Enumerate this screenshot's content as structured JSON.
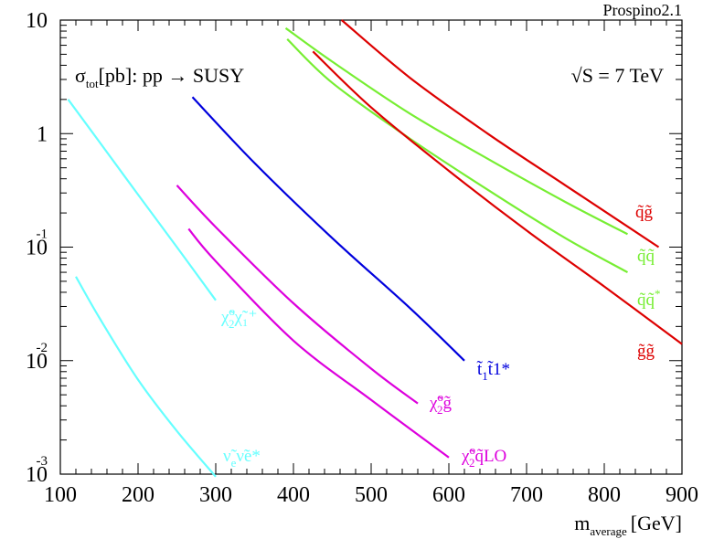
{
  "chart_data": {
    "type": "line",
    "title": "σtot[pb]: pp → SUSY",
    "title_parts": {
      "sigma": "σ",
      "sub": "tot",
      "rest": "[pb]: pp → SUSY"
    },
    "energy_label": "√S = 7 TeV",
    "program_label": "Prospino2.1",
    "xlabel": "m",
    "xlabel_sub": "average",
    "xlabel_unit": "[GeV]",
    "xlim": [
      100,
      900
    ],
    "ylim": [
      0.001,
      10
    ],
    "yscale": "log",
    "x_ticks": [
      100,
      200,
      300,
      400,
      500,
      600,
      700,
      800,
      900
    ],
    "y_ticks": [
      {
        "value": 10,
        "base": "10",
        "exp": ""
      },
      {
        "value": 1,
        "base": "1",
        "exp": ""
      },
      {
        "value": 0.1,
        "base": "10",
        "exp": "-1"
      },
      {
        "value": 0.01,
        "base": "10",
        "exp": "-2"
      },
      {
        "value": 0.001,
        "base": "10",
        "exp": "-3"
      }
    ],
    "series": [
      {
        "name": "q̃g̃",
        "label_main": "q̃g̃",
        "label_sub": "",
        "label_sup": "",
        "label_tail": "",
        "color": "#dd0000",
        "x": [
          462,
          550,
          650,
          750,
          870
        ],
        "y": [
          10,
          3.1,
          1.0,
          0.35,
          0.1
        ]
      },
      {
        "name": "q̃q̃",
        "label_main": "q̃q̃",
        "label_sub": "",
        "label_sup": "",
        "label_tail": "",
        "color": "#77ee33",
        "x": [
          390,
          450,
          550,
          650,
          750,
          830
        ],
        "y": [
          8.5,
          4.3,
          1.5,
          0.6,
          0.25,
          0.13
        ]
      },
      {
        "name": "q̃q̃*",
        "label_main": "q̃q̃",
        "label_sub": "",
        "label_sup": "*",
        "label_tail": "",
        "color": "#77ee33",
        "x": [
          392,
          450,
          550,
          650,
          750,
          830
        ],
        "y": [
          6.8,
          2.8,
          0.9,
          0.32,
          0.12,
          0.06
        ]
      },
      {
        "name": "g̃g̃",
        "label_main": "g̃g̃",
        "label_sub": "",
        "label_sup": "",
        "label_tail": "",
        "color": "#dd0000",
        "x": [
          425,
          500,
          600,
          700,
          800,
          900
        ],
        "y": [
          5.3,
          1.7,
          0.47,
          0.14,
          0.045,
          0.014
        ]
      },
      {
        "name": "χ̃₂⁰χ̃₁⁺",
        "label_main": "χ̃",
        "label_sub": "2",
        "label_sup": "o",
        "label_tail": "χ̃₁⁺",
        "color": "#66ffff",
        "x": [
          110,
          150,
          200,
          250,
          300
        ],
        "y": [
          2.0,
          0.85,
          0.29,
          0.1,
          0.034
        ]
      },
      {
        "name": "ν̃eν̃e*",
        "label_main": "ν̃",
        "label_sub": "e",
        "label_sup": "",
        "label_tail": "ν̃e*",
        "color": "#66ffff",
        "x": [
          120,
          150,
          200,
          250,
          300
        ],
        "y": [
          0.055,
          0.024,
          0.0068,
          0.0024,
          0.00095
        ]
      },
      {
        "name": "t̃1t̃1*",
        "label_main": "t̃",
        "label_sub": "1",
        "label_sup": "",
        "label_tail": "t̃1*",
        "color": "#0000dd",
        "x": [
          270,
          350,
          450,
          550,
          620
        ],
        "y": [
          2.1,
          0.55,
          0.12,
          0.029,
          0.01
        ]
      },
      {
        "name": "χ̃₂⁰g̃",
        "label_main": "χ̃",
        "label_sub": "2",
        "label_sup": "o",
        "label_tail": "g̃",
        "color": "#dd00dd",
        "x": [
          250,
          300,
          400,
          500,
          560
        ],
        "y": [
          0.35,
          0.15,
          0.032,
          0.0085,
          0.0042
        ]
      },
      {
        "name": "χ̃₂⁰q̃LO",
        "label_main": "χ̃",
        "label_sub": "2",
        "label_sup": "o",
        "label_tail": "q̃LO",
        "color": "#dd00dd",
        "x": [
          265,
          300,
          400,
          500,
          600
        ],
        "y": [
          0.145,
          0.075,
          0.015,
          0.0045,
          0.0014
        ]
      }
    ]
  }
}
